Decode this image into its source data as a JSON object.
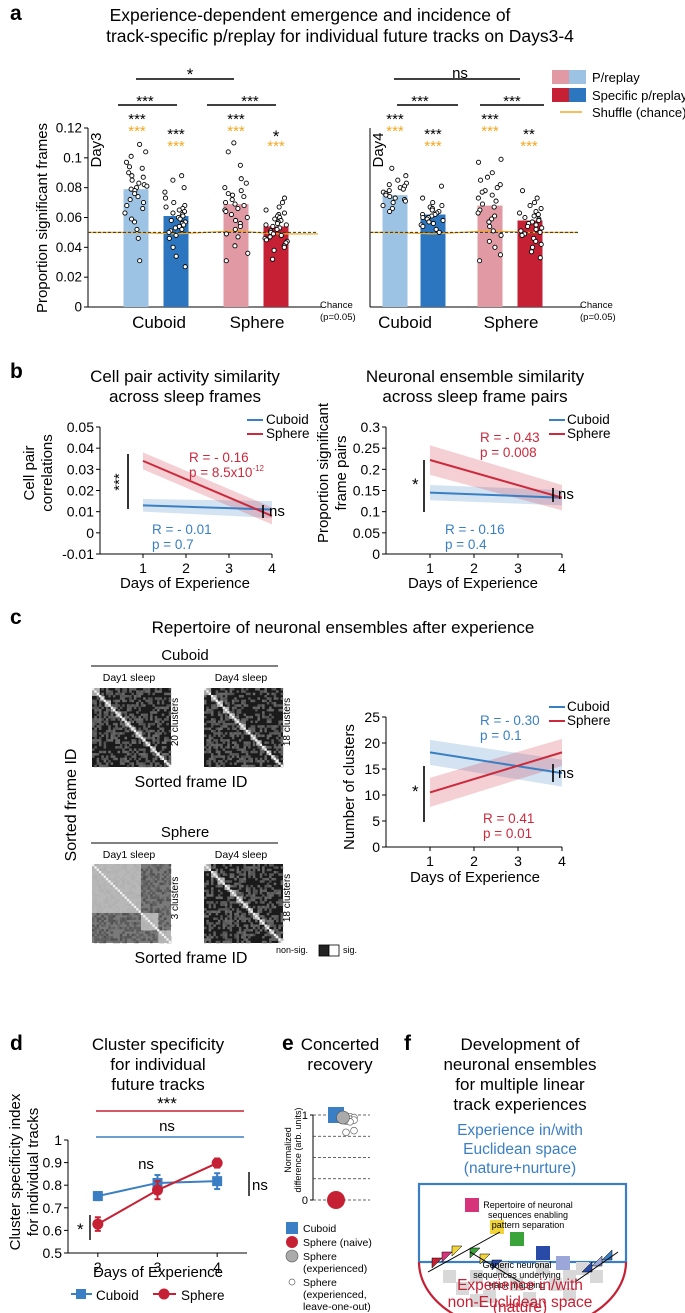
{
  "panel_labels": {
    "a": "a",
    "b": "b",
    "c": "c",
    "d": "d",
    "e": "e",
    "f": "f"
  },
  "colors": {
    "cuboid_light": "#9cc3e4",
    "cuboid_dark": "#2c76c0",
    "sphere_light": "#e19aa3",
    "sphere_dark": "#c52033",
    "shuffle": "#f2a922",
    "cuboid_line": "#3a7fc4",
    "sphere_line": "#cc2a3c"
  },
  "chart_data": [
    {
      "id": "a_day3",
      "type": "bar",
      "title_line1": "Experience-dependent emergence and incidence of",
      "title_line2": "track-specific p/replay for individual future tracks on Days3-4",
      "day_label": "Day3",
      "ylabel": "Proportion significant frames",
      "ylim": [
        0,
        0.12
      ],
      "yticks": [
        0,
        0.02,
        0.04,
        0.06,
        0.08,
        0.1,
        0.12
      ],
      "ytick_labels": [
        "0",
        "0.02",
        "0.04",
        "0.06",
        "0.08",
        "0.1",
        "0.12"
      ],
      "group_labels": [
        "Cuboid",
        "Sphere"
      ],
      "bars": [
        {
          "name": "Cuboid P/replay",
          "value": 0.079,
          "shuffle": 0.05,
          "sig_black": "***",
          "sig_orange": "***"
        },
        {
          "name": "Cuboid Specific p/replay",
          "value": 0.061,
          "shuffle": 0.049,
          "sig_black": "***",
          "sig_orange": "***"
        },
        {
          "name": "Sphere P/replay",
          "value": 0.069,
          "shuffle": 0.051,
          "sig_black": "***",
          "sig_orange": "***"
        },
        {
          "name": "Sphere Specific p/replay",
          "value": 0.054,
          "shuffle": 0.049,
          "sig_black": "*",
          "sig_orange": "***"
        }
      ],
      "chance_value": 0.05,
      "chance_label_1": "Chance",
      "chance_label_2": "(p=0.05)",
      "bracket_outer": "*",
      "bracket_left": "***",
      "bracket_right": "***",
      "points": [
        [
          0.109,
          0.104,
          0.101,
          0.097,
          0.094,
          0.093,
          0.09,
          0.088,
          0.087,
          0.085,
          0.083,
          0.082,
          0.081,
          0.08,
          0.079,
          0.078,
          0.076,
          0.074,
          0.072,
          0.07,
          0.068,
          0.066,
          0.063,
          0.059,
          0.057,
          0.052,
          0.046,
          0.031
        ],
        [
          0.088,
          0.085,
          0.08,
          0.077,
          0.073,
          0.07,
          0.068,
          0.067,
          0.066,
          0.065,
          0.064,
          0.063,
          0.062,
          0.061,
          0.06,
          0.059,
          0.058,
          0.057,
          0.056,
          0.055,
          0.054,
          0.053,
          0.052,
          0.051,
          0.05,
          0.048,
          0.046,
          0.04,
          0.034,
          0.027
        ],
        [
          0.11,
          0.104,
          0.095,
          0.086,
          0.083,
          0.08,
          0.078,
          0.076,
          0.075,
          0.074,
          0.072,
          0.07,
          0.069,
          0.068,
          0.066,
          0.065,
          0.064,
          0.062,
          0.06,
          0.058,
          0.056,
          0.054,
          0.052,
          0.049,
          0.047,
          0.041,
          0.036,
          0.031
        ],
        [
          0.073,
          0.07,
          0.067,
          0.065,
          0.063,
          0.062,
          0.061,
          0.06,
          0.059,
          0.058,
          0.057,
          0.056,
          0.055,
          0.055,
          0.054,
          0.053,
          0.052,
          0.051,
          0.05,
          0.049,
          0.048,
          0.047,
          0.046,
          0.045,
          0.044,
          0.043,
          0.041,
          0.04,
          0.038,
          0.032
        ]
      ]
    },
    {
      "id": "a_day4",
      "type": "bar",
      "day_label": "Day4",
      "ylim": [
        0,
        0.12
      ],
      "group_labels": [
        "Cuboid",
        "Sphere"
      ],
      "legend": [
        "P/replay",
        "Specific p/replay",
        "Shuffle (chance)"
      ],
      "bars": [
        {
          "name": "Cuboid P/replay",
          "value": 0.075,
          "shuffle": 0.05,
          "sig_black": "***",
          "sig_orange": "***"
        },
        {
          "name": "Cuboid Specific p/replay",
          "value": 0.062,
          "shuffle": 0.049,
          "sig_black": "***",
          "sig_orange": "***"
        },
        {
          "name": "Sphere P/replay",
          "value": 0.068,
          "shuffle": 0.051,
          "sig_black": "***",
          "sig_orange": "***"
        },
        {
          "name": "Sphere Specific p/replay",
          "value": 0.058,
          "shuffle": 0.05,
          "sig_black": "**",
          "sig_orange": "***"
        }
      ],
      "chance_value": 0.05,
      "chance_label_1": "Chance",
      "chance_label_2": "(p=0.05)",
      "bracket_outer": "ns",
      "bracket_left": "***",
      "bracket_right": "***",
      "points": [
        [
          0.093,
          0.088,
          0.085,
          0.083,
          0.082,
          0.081,
          0.08,
          0.079,
          0.078,
          0.077,
          0.076,
          0.075,
          0.074,
          0.073,
          0.072,
          0.071,
          0.07,
          0.068,
          0.066,
          0.064
        ],
        [
          0.081,
          0.073,
          0.07,
          0.068,
          0.067,
          0.066,
          0.065,
          0.064,
          0.063,
          0.062,
          0.062,
          0.061,
          0.06,
          0.06,
          0.059,
          0.058,
          0.057,
          0.056,
          0.055,
          0.054,
          0.052,
          0.05
        ],
        [
          0.099,
          0.097,
          0.09,
          0.087,
          0.085,
          0.082,
          0.08,
          0.078,
          0.077,
          0.075,
          0.073,
          0.071,
          0.069,
          0.067,
          0.065,
          0.063,
          0.061,
          0.059,
          0.057,
          0.054,
          0.051,
          0.048,
          0.044,
          0.04,
          0.035,
          0.031
        ],
        [
          0.078,
          0.073,
          0.07,
          0.068,
          0.066,
          0.064,
          0.063,
          0.062,
          0.061,
          0.06,
          0.059,
          0.058,
          0.057,
          0.056,
          0.055,
          0.054,
          0.053,
          0.052,
          0.051,
          0.05,
          0.049,
          0.048,
          0.046,
          0.044,
          0.042,
          0.04,
          0.037,
          0.033
        ]
      ]
    },
    {
      "id": "b_left",
      "type": "line",
      "title_line1": "Cell pair activity similarity",
      "title_line2": "across sleep frames",
      "xlabel": "Days of Experience",
      "ylabel_1": "Cell pair",
      "ylabel_2": "correlations",
      "xlim": [
        0,
        4
      ],
      "ylim": [
        -0.01,
        0.05
      ],
      "xticks": [
        1,
        2,
        3,
        4
      ],
      "yticks": [
        -0.01,
        0,
        0.01,
        0.02,
        0.03,
        0.04,
        0.05
      ],
      "ytick_labels": [
        "-0.01",
        "0",
        "0.01",
        "0.02",
        "0.03",
        "0.04",
        "0.05"
      ],
      "series": [
        {
          "name": "Cuboid",
          "x": [
            1,
            4
          ],
          "y": [
            0.013,
            0.011
          ],
          "ci_half": [
            0.003,
            0.004
          ],
          "stat_r": "R = - 0.01",
          "stat_p": "p = 0.7"
        },
        {
          "name": "Sphere",
          "x": [
            1,
            4
          ],
          "y": [
            0.034,
            0.008
          ],
          "ci_half": [
            0.004,
            0.004
          ],
          "stat_r": "R = - 0.16",
          "stat_p": "p = 8.5x10",
          "stat_p_exp": "-12"
        }
      ],
      "left_sig": "***",
      "right_sig": "ns"
    },
    {
      "id": "b_right",
      "type": "line",
      "title_line1": "Neuronal ensemble similarity",
      "title_line2": "across sleep frame pairs",
      "xlabel": "Days of Experience",
      "ylabel_1": "Proportion significant",
      "ylabel_2": "frame pairs",
      "xlim": [
        0,
        4
      ],
      "ylim": [
        0,
        0.3
      ],
      "xticks": [
        1,
        2,
        3,
        4
      ],
      "yticks": [
        0,
        0.05,
        0.1,
        0.15,
        0.2,
        0.25,
        0.3
      ],
      "ytick_labels": [
        "0",
        "0.05",
        "0.1",
        "0.15",
        "0.2",
        "0.25",
        "0.3"
      ],
      "series": [
        {
          "name": "Cuboid",
          "x": [
            1,
            4
          ],
          "y": [
            0.145,
            0.133
          ],
          "ci_half": [
            0.018,
            0.018
          ],
          "stat_r": "R = - 0.16",
          "stat_p": "p = 0.4"
        },
        {
          "name": "Sphere",
          "x": [
            1,
            4
          ],
          "y": [
            0.222,
            0.133
          ],
          "ci_half": [
            0.035,
            0.03
          ],
          "stat_r": "R = - 0.43",
          "stat_p": "p = 0.008"
        }
      ],
      "left_sig": "*",
      "right_sig": "ns"
    },
    {
      "id": "c_matrices",
      "type": "heatmap",
      "title": "Repertoire of neuronal ensembles after experience",
      "group_cuboid": "Cuboid",
      "group_sphere": "Sphere",
      "day1": "Day1 sleep",
      "day4": "Day4 sleep",
      "clusters": [
        "20 clusters",
        "18 clusters",
        "3 clusters",
        "18 clusters"
      ],
      "ylabel": "Sorted frame ID",
      "xlabel": "Sorted frame ID",
      "scale_nonsig": "non-sig.",
      "scale_sig": "sig."
    },
    {
      "id": "c_clusters",
      "type": "line",
      "xlabel": "Days of Experience",
      "ylabel": "Number of clusters",
      "xlim": [
        0,
        4
      ],
      "ylim": [
        0,
        25
      ],
      "xticks": [
        1,
        2,
        3,
        4
      ],
      "yticks": [
        0,
        5,
        10,
        15,
        20,
        25
      ],
      "ytick_labels": [
        "0",
        "5",
        "10",
        "15",
        "20",
        "25"
      ],
      "series": [
        {
          "name": "Cuboid",
          "x": [
            1,
            4
          ],
          "y": [
            18.2,
            14.2
          ],
          "ci_half": [
            2.4,
            2.6
          ],
          "stat_r": "R = - 0.30",
          "stat_p": "p = 0.1"
        },
        {
          "name": "Sphere",
          "x": [
            1,
            4
          ],
          "y": [
            10.5,
            18.2
          ],
          "ci_half": [
            2.8,
            2.6
          ],
          "stat_r": "R = 0.41",
          "stat_p": "p = 0.01"
        }
      ],
      "left_sig": "*",
      "right_sig": "ns"
    },
    {
      "id": "d",
      "type": "line",
      "title_line1": "Cluster specificity",
      "title_line2": "for individual",
      "title_line3": "future tracks",
      "xlabel": "Days of Experience",
      "ylabel_1": "Cluster specificity index",
      "ylabel_2": "for individual tracks",
      "xlim": [
        1.5,
        4.5
      ],
      "ylim": [
        0.5,
        1.0
      ],
      "xticks": [
        2,
        3,
        4
      ],
      "yticks": [
        0.5,
        0.6,
        0.7,
        0.8,
        0.9,
        1.0
      ],
      "ytick_labels": [
        "0.5",
        "0.6",
        "0.7",
        "0.8",
        "0.9",
        "1"
      ],
      "series": [
        {
          "name": "Cuboid",
          "x": [
            2,
            3,
            4
          ],
          "y": [
            0.752,
            0.81,
            0.818
          ],
          "err": [
            0.018,
            0.035,
            0.035
          ]
        },
        {
          "name": "Sphere",
          "x": [
            2,
            3,
            4
          ],
          "y": [
            0.628,
            0.778,
            0.898
          ],
          "err": [
            0.03,
            0.04,
            0.02
          ]
        }
      ],
      "top_sig_sphere": "***",
      "top_sig_cuboid": "ns",
      "mid_sig": "ns",
      "left_sig": "*",
      "right_sig": "ns"
    },
    {
      "id": "e",
      "type": "scatter",
      "title_line1": "Concerted",
      "title_line2": "recovery",
      "ylabel_1": "Normalized",
      "ylabel_2": "difference (arb. units)",
      "ylim": [
        0,
        1
      ],
      "yticks": [
        0,
        1
      ],
      "ytick_labels": [
        "0",
        "1"
      ],
      "series": [
        {
          "name": "Cuboid",
          "y": [
            1.0
          ]
        },
        {
          "name": "Sphere (naive)",
          "y": [
            0.0
          ]
        },
        {
          "name": "Sphere (experienced)",
          "y": [
            0.97
          ]
        },
        {
          "name": "Sphere (experienced, leave-one-out)",
          "y": [
            0.99,
            0.98,
            0.97,
            0.96,
            0.95,
            0.94,
            0.93,
            0.92,
            0.91,
            0.89
          ]
        }
      ],
      "legend": [
        "Cuboid",
        "Sphere (naive)",
        "Sphere",
        "(experienced)",
        "Sphere",
        "(experienced,",
        "leave-one-out)"
      ]
    }
  ],
  "panel_f": {
    "title_line1": "Development of",
    "title_line2": "neuronal ensembles",
    "title_line3": "for multiple linear",
    "title_line4": "track experiences",
    "blue_line1": "Experience in/with",
    "blue_line2": "Euclidean space",
    "blue_line3": "(nature+nurture)",
    "inner_line1": "Repertoire of neuronal",
    "inner_line2": "sequences enabling",
    "inner_line3": "pattern separation",
    "lower_line1": "Generic neuronal",
    "lower_line2": "sequences underlying",
    "lower_line3": "track mapping",
    "red_line1": "Experience in/with",
    "red_line2": "non-Euclidean space",
    "red_line3": "(nature)"
  }
}
